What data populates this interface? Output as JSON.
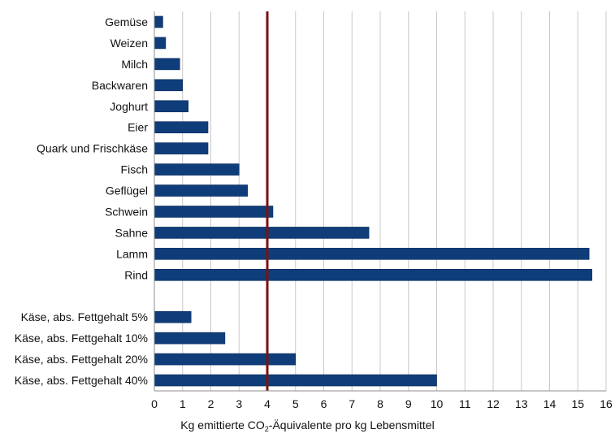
{
  "chart_data": {
    "type": "bar",
    "orientation": "horizontal",
    "categories": [
      "Gemüse",
      "Weizen",
      "Milch",
      "Backwaren",
      "Joghurt",
      "Eier",
      "Quark und Frischkäse",
      "Fisch",
      "Geflügel",
      "Schwein",
      "Sahne",
      "Lamm",
      "Rind",
      "",
      "Käse, abs. Fettgehalt 5%",
      "Käse, abs. Fettgehalt 10%",
      "Käse, abs. Fettgehalt 20%",
      "Käse, abs. Fettgehalt 40%"
    ],
    "values": [
      0.3,
      0.4,
      0.9,
      1.0,
      1.2,
      1.9,
      1.9,
      3.0,
      3.3,
      4.2,
      7.6,
      15.4,
      15.5,
      null,
      1.3,
      2.5,
      5.0,
      10.0
    ],
    "xlim": [
      0,
      16
    ],
    "xticks": [
      0,
      1,
      2,
      3,
      4,
      5,
      6,
      7,
      8,
      9,
      10,
      11,
      12,
      13,
      14,
      15,
      16
    ],
    "xlabel": {
      "before": "Kg emittierte CO",
      "subscript": "2",
      "after": "-Äquivalente pro kg Lebensmittel"
    },
    "reference_line": {
      "x": 4,
      "color": "#7b1113"
    },
    "bar_color": "#0f3d7a",
    "grid": "vertical",
    "legend": "none"
  }
}
